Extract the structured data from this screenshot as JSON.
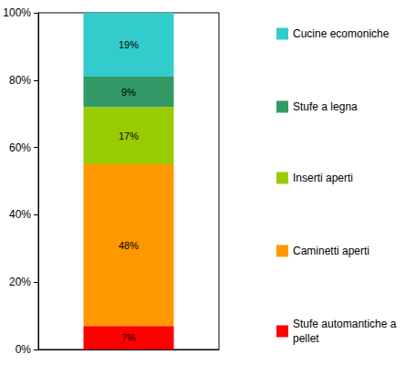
{
  "chart_data": {
    "type": "bar",
    "stacked": true,
    "data_labels": true,
    "grid": false,
    "legend": "right",
    "categories": [
      null
    ],
    "series": [
      {
        "name": "Stufe automantiche a pellet",
        "color": "#ff0000",
        "values": [
          7
        ],
        "value_labels": [
          "7%"
        ]
      },
      {
        "name": "Caminetti aperti",
        "color": "#ff9900",
        "values": [
          48
        ],
        "value_labels": [
          "48%"
        ]
      },
      {
        "name": "Inserti aperti",
        "color": "#99cc00",
        "values": [
          17
        ],
        "value_labels": [
          "17%"
        ]
      },
      {
        "name": "Stufe a legna",
        "color": "#339966",
        "values": [
          9
        ],
        "value_labels": [
          "9%"
        ]
      },
      {
        "name": "Cucine ecomoniche",
        "color": "#33cccc",
        "values": [
          19
        ],
        "value_labels": [
          "19%"
        ]
      }
    ],
    "ylim": [
      0,
      100
    ],
    "yticks": [
      {
        "value": 0,
        "label": "0%"
      },
      {
        "value": 20,
        "label": "20%"
      },
      {
        "value": 40,
        "label": "40%"
      },
      {
        "value": 60,
        "label": "60%"
      },
      {
        "value": 80,
        "label": "80%"
      },
      {
        "value": 100,
        "label": "100%"
      }
    ]
  }
}
